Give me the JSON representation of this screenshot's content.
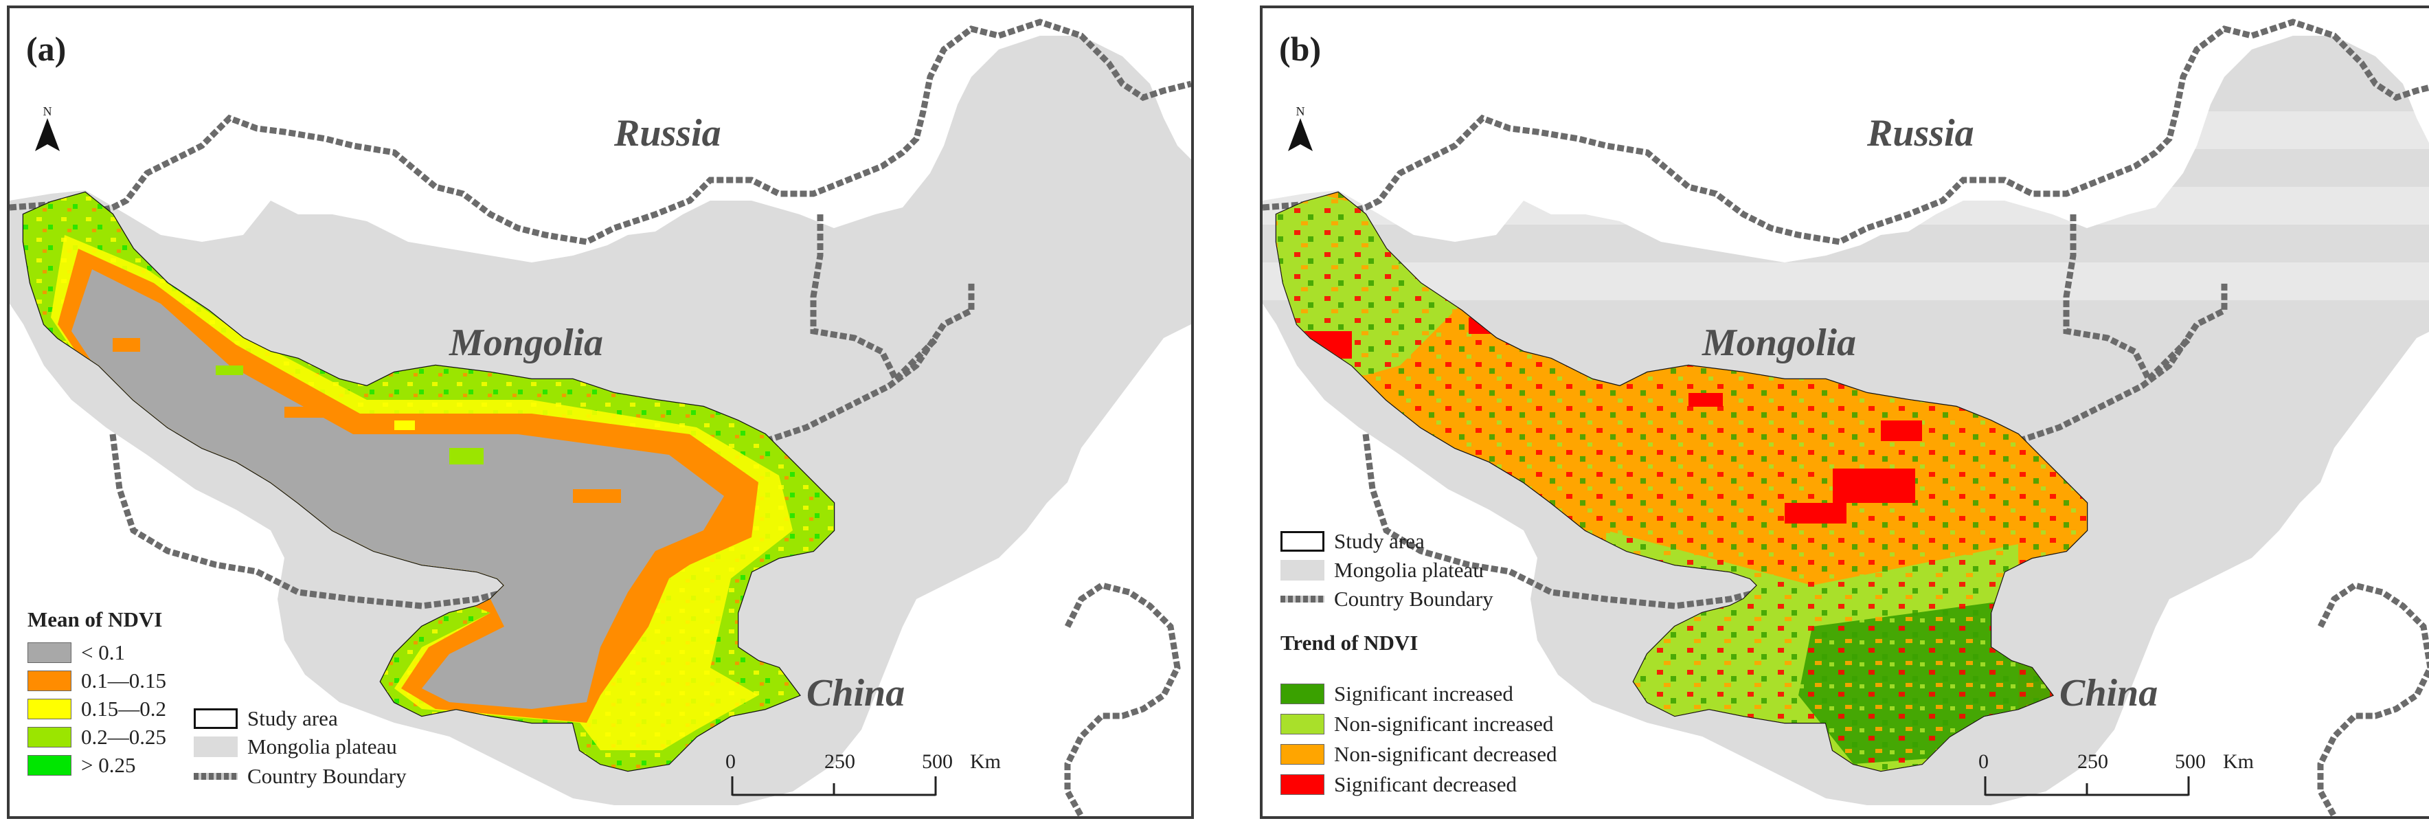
{
  "panel_a": {
    "label": "(a)",
    "countries": {
      "russia": "Russia",
      "mongolia": "Mongolia",
      "china": "China"
    },
    "north_letter": "N",
    "legend": {
      "title": "Mean of NDVI",
      "classes": [
        {
          "label": "< 0.1",
          "color": "#a8a8a8"
        },
        {
          "label": "0.1—0.15",
          "color": "#ff8c00"
        },
        {
          "label": "0.15—0.2",
          "color": "#ffff00"
        },
        {
          "label": "0.2—0.25",
          "color": "#9be500"
        },
        {
          "label": "> 0.25",
          "color": "#00e600"
        }
      ],
      "study_area": "Study area",
      "plateau": "Mongolia plateau",
      "boundary": "Country Boundary"
    },
    "scale": {
      "ticks": [
        "0",
        "250",
        "500"
      ],
      "unit": "Km"
    }
  },
  "panel_b": {
    "label": "(b)",
    "countries": {
      "russia": "Russia",
      "mongolia": "Mongolia",
      "china": "China"
    },
    "north_letter": "N",
    "legend": {
      "study_area": "Study area",
      "plateau": "Mongolia plateau",
      "boundary": "Country Boundary",
      "title": "Trend of NDVI",
      "classes": [
        {
          "label": "Significant increased",
          "color": "#3aa100"
        },
        {
          "label": "Non-significant increased",
          "color": "#a9e02a"
        },
        {
          "label": "Non-significant decreased",
          "color": "#ffa500"
        },
        {
          "label": "Significant decreased",
          "color": "#ff0000"
        }
      ]
    },
    "scale": {
      "ticks": [
        "0",
        "250",
        "500"
      ],
      "unit": "Km"
    }
  }
}
